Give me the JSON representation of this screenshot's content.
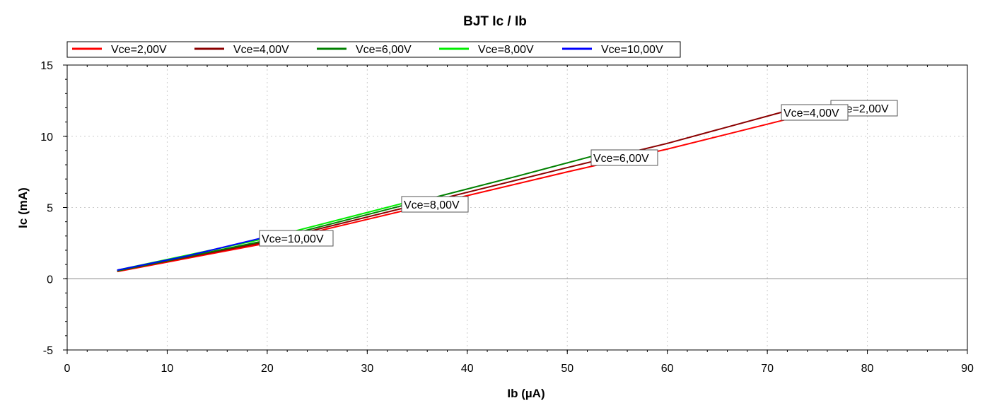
{
  "chart_data": {
    "type": "line",
    "title": "BJT Ic / Ib",
    "xlabel": "Ib (µA)",
    "ylabel": "Ic (mA)",
    "xlim": [
      0,
      90
    ],
    "ylim": [
      -5,
      15
    ],
    "xticks": [
      0,
      10,
      20,
      30,
      40,
      50,
      60,
      70,
      80,
      90
    ],
    "yticks": [
      -5,
      0,
      5,
      10,
      15
    ],
    "grid": true,
    "legend_position": "top",
    "series": [
      {
        "name": "Vce=2,00V",
        "color": "#ff0000",
        "x": [
          5,
          20,
          35,
          50,
          60,
          72
        ],
        "y": [
          0.5,
          2.5,
          5.0,
          7.5,
          9.1,
          11.2
        ],
        "label": "Vce=2,00V"
      },
      {
        "name": "Vce=4,00V",
        "color": "#8b0000",
        "x": [
          5,
          20,
          35,
          50,
          60,
          71.5
        ],
        "y": [
          0.55,
          2.6,
          5.2,
          7.8,
          9.5,
          11.7
        ],
        "label": "Vce=4,00V"
      },
      {
        "name": "Vce=6,00V",
        "color": "#008000",
        "x": [
          5,
          20,
          35,
          45,
          52.5
        ],
        "y": [
          0.55,
          2.7,
          5.4,
          7.2,
          8.6
        ],
        "label": "Vce=6,00V"
      },
      {
        "name": "Vce=8,00V",
        "color": "#00ee00",
        "x": [
          5,
          20,
          33.6
        ],
        "y": [
          0.6,
          2.85,
          5.3
        ],
        "label": "Vce=8,00V"
      },
      {
        "name": "Vce=10,00V",
        "color": "#0000ff",
        "x": [
          5,
          12,
          19.4
        ],
        "y": [
          0.6,
          1.6,
          2.85
        ],
        "label": "Vce=10,00V"
      }
    ]
  }
}
